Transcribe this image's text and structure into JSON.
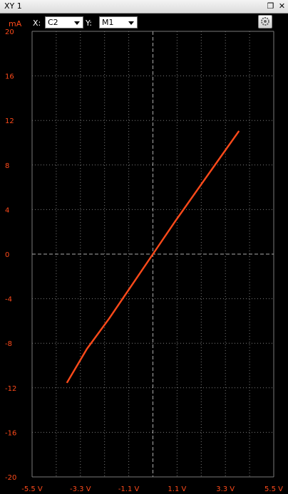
{
  "window": {
    "title": "XY 1",
    "restore_icon": "restore-window-icon",
    "close_icon": "close-icon"
  },
  "toolbar": {
    "x_label": "X:",
    "x_source": "C2",
    "y_label": "Y:",
    "y_source": "M1",
    "settings_icon": "gear-icon"
  },
  "chart_data": {
    "type": "line",
    "y_unit": "mA",
    "x_ticks": [
      "-5.5 V",
      "-3.3 V",
      "-1.1 V",
      "1.1 V",
      "3.3 V",
      "5.5 V"
    ],
    "y_ticks": [
      "20",
      "16",
      "12",
      "8",
      "4",
      "0",
      "-4",
      "-8",
      "-12",
      "-16",
      "-20"
    ],
    "xlim": [
      -5.5,
      5.5
    ],
    "ylim": [
      -20,
      20
    ],
    "grid": true,
    "series": [
      {
        "color": "#ff4a1a",
        "x": [
          -3.9,
          -3.0,
          -2.0,
          -1.0,
          0.0,
          1.0,
          2.0,
          3.0,
          3.9
        ],
        "y": [
          -11.5,
          -8.5,
          -5.8,
          -2.9,
          0.0,
          2.9,
          5.7,
          8.5,
          11.0
        ]
      }
    ]
  }
}
